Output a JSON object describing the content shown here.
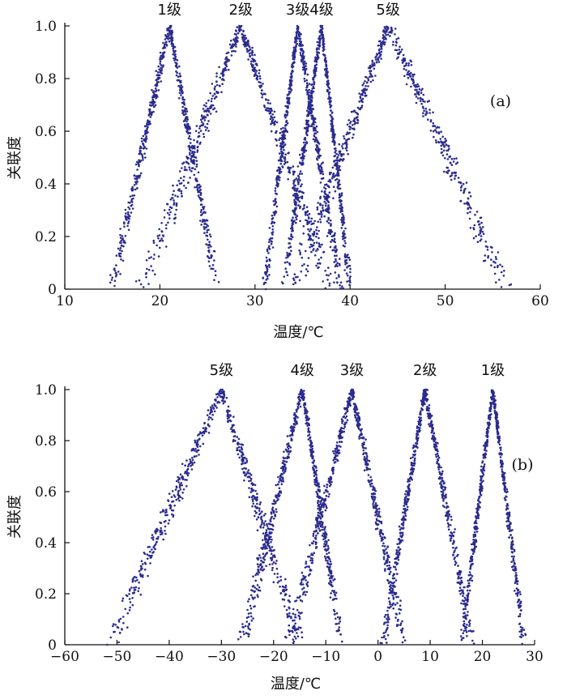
{
  "chart_data": [
    {
      "type": "scatter",
      "panel_label": "(a)",
      "xlabel": "温度/℃",
      "ylabel": "关联度",
      "xlim": [
        10,
        60
      ],
      "ylim": [
        0,
        1.0
      ],
      "x_ticks": [
        10,
        20,
        30,
        40,
        50,
        60
      ],
      "y_ticks": [
        0,
        0.2,
        0.4,
        0.6,
        0.8,
        1.0
      ],
      "y_tick_labels": [
        "0",
        "0.2",
        "0.4",
        "0.6",
        "0.8",
        "1.0"
      ],
      "grid": false,
      "marker_color": "#2b2b8f",
      "series": [
        {
          "name": "1级",
          "peak": 21,
          "x_at_zero": [
            15,
            26
          ]
        },
        {
          "name": "2级",
          "peak": 28.5,
          "x_at_zero": [
            18,
            38
          ]
        },
        {
          "name": "3级",
          "peak": 34.5,
          "x_at_zero": [
            31,
            39
          ]
        },
        {
          "name": "4级",
          "peak": 37,
          "x_at_zero": [
            33,
            40
          ]
        },
        {
          "name": "5级",
          "peak": 44,
          "x_at_zero": [
            34,
            56.5
          ]
        }
      ]
    },
    {
      "type": "scatter",
      "panel_label": "(b)",
      "xlabel": "温度/℃",
      "ylabel": "关联度",
      "xlim": [
        -60,
        30
      ],
      "ylim": [
        0,
        1.0
      ],
      "x_ticks": [
        -60,
        -50,
        -40,
        -30,
        -20,
        -10,
        0,
        10,
        20,
        30
      ],
      "y_ticks": [
        0,
        0.2,
        0.4,
        0.6,
        0.8,
        1.0
      ],
      "y_tick_labels": [
        "0",
        "0.2",
        "0.4",
        "0.6",
        "0.8",
        "1.0"
      ],
      "grid": false,
      "marker_color": "#2b2b8f",
      "series": [
        {
          "name": "5级",
          "peak": -30,
          "x_at_zero": [
            -51,
            -15
          ]
        },
        {
          "name": "4级",
          "peak": -14.5,
          "x_at_zero": [
            -26,
            -7
          ]
        },
        {
          "name": "3级",
          "peak": -5,
          "x_at_zero": [
            -17,
            5
          ]
        },
        {
          "name": "2级",
          "peak": 9,
          "x_at_zero": [
            1,
            18
          ]
        },
        {
          "name": "1级",
          "peak": 22,
          "x_at_zero": [
            16,
            28
          ]
        }
      ]
    }
  ]
}
